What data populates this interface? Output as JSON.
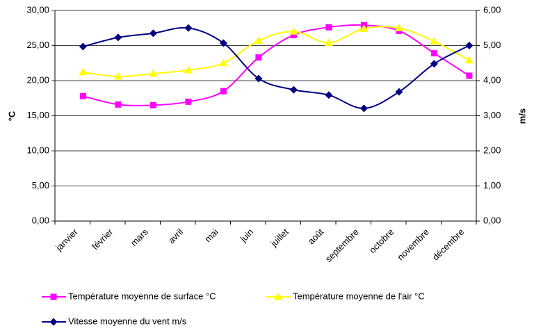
{
  "chart_data": {
    "type": "line",
    "categories": [
      "janvier",
      "février",
      "mars",
      "avril",
      "mai",
      "juin",
      "juillet",
      "août",
      "septembre",
      "octobre",
      "novembre",
      "décembre"
    ],
    "series": [
      {
        "name": "Température moyenne  de surface °C",
        "color": "#ff00ff",
        "marker": "square",
        "values": [
          17.8,
          16.6,
          16.5,
          17.0,
          18.5,
          23.3,
          26.5,
          27.6,
          27.9,
          27.1,
          23.9,
          20.7
        ]
      },
      {
        "name": "Température moyenne de l'air °C",
        "color": "#ffff00",
        "marker": "triangle",
        "values": [
          21.2,
          20.6,
          21.0,
          21.5,
          22.5,
          25.7,
          27.0,
          25.4,
          27.4,
          27.5,
          25.6,
          22.9
        ]
      },
      {
        "name": "Vitesse moyenne du vent m/s",
        "color": "#000080",
        "marker": "diamond",
        "axis": "y2",
        "values": [
          4.97,
          5.23,
          5.35,
          5.5,
          5.07,
          4.06,
          3.74,
          3.59,
          3.21,
          3.68,
          4.48,
          5.0
        ]
      }
    ],
    "ylabel": "°C",
    "y2label": "m/s",
    "ylim": [
      0,
      30
    ],
    "yticks": [
      {
        "value": 0,
        "label": "0,00"
      },
      {
        "value": 5,
        "label": "5,00"
      },
      {
        "value": 10,
        "label": "10,00"
      },
      {
        "value": 15,
        "label": "15,00"
      },
      {
        "value": 20,
        "label": "20,00"
      },
      {
        "value": 25,
        "label": "25,00"
      },
      {
        "value": 30,
        "label": "30,00"
      }
    ],
    "y2lim": [
      0,
      6
    ],
    "y2ticks": [
      {
        "value": 0,
        "label": "0,00"
      },
      {
        "value": 1,
        "label": "1,00"
      },
      {
        "value": 2,
        "label": "2,00"
      },
      {
        "value": 3,
        "label": "3,00"
      },
      {
        "value": 4,
        "label": "4,00"
      },
      {
        "value": 5,
        "label": "5,00"
      },
      {
        "value": 6,
        "label": "6,00"
      }
    ],
    "grid": true,
    "legend": "bottom"
  }
}
